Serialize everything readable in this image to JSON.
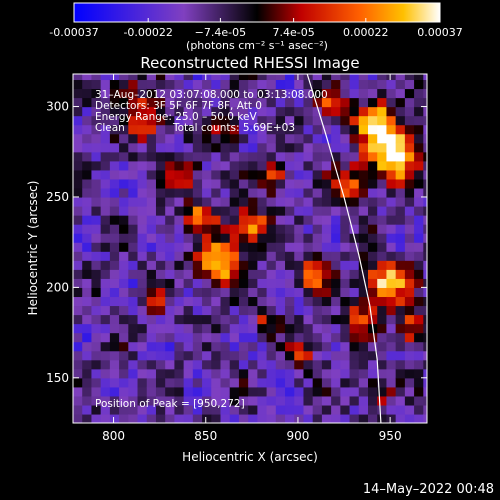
{
  "chart_data": {
    "type": "heatmap",
    "title": "Reconstructed RHESSI Image",
    "xlabel": "Heliocentric X (arcsec)",
    "ylabel": "Heliocentric Y (arcsec)",
    "xlim": [
      778,
      970
    ],
    "ylim": [
      125,
      318
    ],
    "x_ticks": [
      800,
      850,
      900,
      950
    ],
    "y_ticks": [
      150,
      200,
      250,
      300
    ],
    "colorbar": {
      "ticks": [
        "-0.00037",
        "-0.00022",
        "−7.4e-05",
        "7.4e-05",
        "0.00022",
        "0.00037"
      ],
      "tick_values": [
        -0.00037,
        -0.00022,
        -7.4e-05,
        7.4e-05,
        0.00022,
        0.00037
      ],
      "range": [
        -0.00037,
        0.00037
      ],
      "unit_label": "(photons cm⁻² s⁻¹ asec⁻²)",
      "colormap": "rhessi",
      "colors": [
        "#0000ff",
        "#8040c0",
        "#000000",
        "#c00000",
        "#ff6000",
        "#ffc000",
        "#ffffff"
      ]
    },
    "annotations": [
      "31–Aug–2012 03:07:08.000 to 03:13:08.000",
      "Detectors: 3F 5F 6F 7F 8F, Att 0",
      "Energy Range: 25.0 – 50.0 keV",
      "Clean",
      "Total counts: 5.69E+03"
    ],
    "peak_label": "Position of Peak = [950,272]",
    "peak_position": [
      950,
      272
    ],
    "limb_curve": [
      [
        905,
        318
      ],
      [
        915,
        285
      ],
      [
        925,
        250
      ],
      [
        933,
        218
      ],
      [
        939,
        190
      ],
      [
        943,
        160
      ],
      [
        945,
        125
      ]
    ],
    "grid": false
  },
  "timestamp": "14–May–2022 00:48"
}
